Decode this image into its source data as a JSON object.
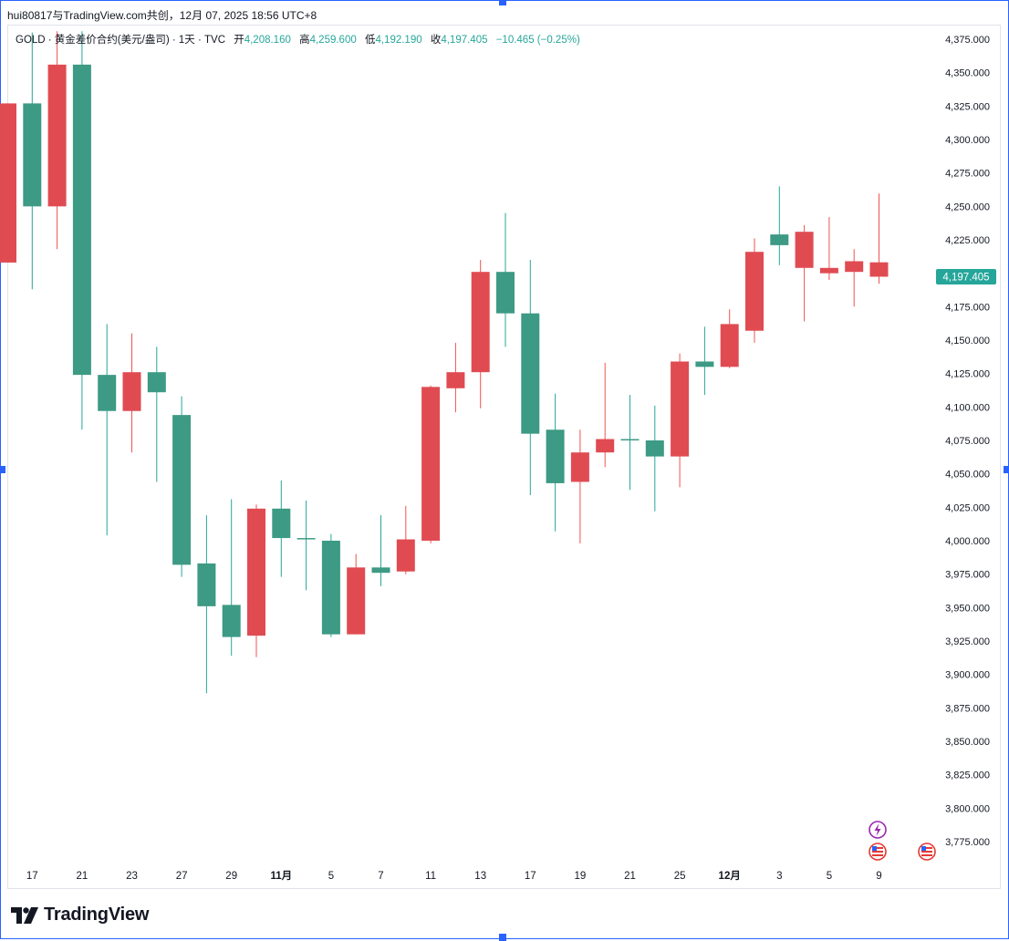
{
  "header": {
    "text": "hui80817与TradingView.com共创，12月 07, 2025 18:56 UTC+8"
  },
  "legend": {
    "title": "GOLD · 黄金差价合约(美元/盎司) · 1天 · TVC",
    "open_label": "开",
    "open": "4,208.160",
    "high_label": "高",
    "high": "4,259.600",
    "low_label": "低",
    "low": "4,192.190",
    "close_label": "收",
    "close": "4,197.405",
    "change": "−10.465 (−0.25%)"
  },
  "colors": {
    "up": "#26a69a",
    "down": "#ef5350",
    "bull_body": "#3d9a84",
    "bear_body": "#e04b52"
  },
  "price_tag": "4,197.405",
  "logo": {
    "text": "TradingView",
    "icon": "tradingview-logo-icon"
  },
  "event_icons": [
    "lightning-icon",
    "us-flag-icon",
    "us-flag-icon"
  ],
  "chart_data": {
    "type": "candlestick",
    "symbol": "GOLD",
    "interval": "1天",
    "ylim": [
      3760,
      4385
    ],
    "y_ticks": [
      "4,375.000",
      "4,350.000",
      "4,325.000",
      "4,300.000",
      "4,275.000",
      "4,250.000",
      "4,225.000",
      "4,200.000",
      "4,175.000",
      "4,150.000",
      "4,125.000",
      "4,100.000",
      "4,075.000",
      "4,050.000",
      "4,025.000",
      "4,000.000",
      "3,975.000",
      "3,950.000",
      "3,925.000",
      "3,900.000",
      "3,875.000",
      "3,850.000",
      "3,825.000",
      "3,800.000",
      "3,775.000"
    ],
    "x_ticks": [
      {
        "label": "17",
        "bar": 1
      },
      {
        "label": "21",
        "bar": 3
      },
      {
        "label": "23",
        "bar": 5
      },
      {
        "label": "27",
        "bar": 7
      },
      {
        "label": "29",
        "bar": 9
      },
      {
        "label": "11月",
        "bar": 11,
        "bold": true
      },
      {
        "label": "5",
        "bar": 13
      },
      {
        "label": "7",
        "bar": 15
      },
      {
        "label": "11",
        "bar": 17
      },
      {
        "label": "13",
        "bar": 19
      },
      {
        "label": "17",
        "bar": 21
      },
      {
        "label": "19",
        "bar": 23
      },
      {
        "label": "21",
        "bar": 25
      },
      {
        "label": "25",
        "bar": 27
      },
      {
        "label": "12月",
        "bar": 29,
        "bold": true
      },
      {
        "label": "3",
        "bar": 31
      },
      {
        "label": "5",
        "bar": 33
      },
      {
        "label": "9",
        "bar": 35
      }
    ],
    "candles": [
      {
        "o": 4327,
        "h": 4327,
        "l": 4208,
        "c": 4208
      },
      {
        "o": 4250,
        "h": 4380,
        "l": 4188,
        "c": 4327
      },
      {
        "o": 4356,
        "h": 4381,
        "l": 4218,
        "c": 4250
      },
      {
        "o": 4124,
        "h": 4381,
        "l": 4083,
        "c": 4356
      },
      {
        "o": 4097,
        "h": 4162,
        "l": 4004,
        "c": 4124
      },
      {
        "o": 4126,
        "h": 4155,
        "l": 4066,
        "c": 4097
      },
      {
        "o": 4111,
        "h": 4145,
        "l": 4044,
        "c": 4126
      },
      {
        "o": 3982,
        "h": 4108,
        "l": 3973,
        "c": 4094
      },
      {
        "o": 3951,
        "h": 4019,
        "l": 3886,
        "c": 3983
      },
      {
        "o": 3928,
        "h": 4031,
        "l": 3914,
        "c": 3952
      },
      {
        "o": 4024,
        "h": 4027,
        "l": 3913,
        "c": 3929
      },
      {
        "o": 4002,
        "h": 4045,
        "l": 3973,
        "c": 4024
      },
      {
        "o": 4002,
        "h": 4030,
        "l": 3963,
        "c": 4002
      },
      {
        "o": 3930,
        "h": 4005,
        "l": 3928,
        "c": 4000
      },
      {
        "o": 3980,
        "h": 3990,
        "l": 3930,
        "c": 3930
      },
      {
        "o": 3976,
        "h": 4019,
        "l": 3966,
        "c": 3980
      },
      {
        "o": 4001,
        "h": 4026,
        "l": 3975,
        "c": 3977
      },
      {
        "o": 4115,
        "h": 4116,
        "l": 3998,
        "c": 4000
      },
      {
        "o": 4126,
        "h": 4148,
        "l": 4096,
        "c": 4114
      },
      {
        "o": 4201,
        "h": 4210,
        "l": 4099,
        "c": 4126
      },
      {
        "o": 4170,
        "h": 4245,
        "l": 4145,
        "c": 4201
      },
      {
        "o": 4080,
        "h": 4210,
        "l": 4034,
        "c": 4170
      },
      {
        "o": 4043,
        "h": 4110,
        "l": 4007,
        "c": 4083
      },
      {
        "o": 4066,
        "h": 4083,
        "l": 3998,
        "c": 4044
      },
      {
        "o": 4076,
        "h": 4133,
        "l": 4055,
        "c": 4066
      },
      {
        "o": 4075,
        "h": 4109,
        "l": 4038,
        "c": 4076
      },
      {
        "o": 4063,
        "h": 4101,
        "l": 4022,
        "c": 4075
      },
      {
        "o": 4134,
        "h": 4140,
        "l": 4040,
        "c": 4063
      },
      {
        "o": 4130,
        "h": 4160,
        "l": 4109,
        "c": 4134
      },
      {
        "o": 4162,
        "h": 4173,
        "l": 4129,
        "c": 4130
      },
      {
        "o": 4216,
        "h": 4226,
        "l": 4148,
        "c": 4157
      },
      {
        "o": 4221,
        "h": 4265,
        "l": 4206,
        "c": 4229
      },
      {
        "o": 4231,
        "h": 4236,
        "l": 4164,
        "c": 4204
      },
      {
        "o": 4204,
        "h": 4242,
        "l": 4195,
        "c": 4200
      },
      {
        "o": 4209,
        "h": 4218,
        "l": 4175,
        "c": 4201
      },
      {
        "o": 4208.16,
        "h": 4259.6,
        "l": 4192.19,
        "c": 4197.405
      }
    ]
  }
}
